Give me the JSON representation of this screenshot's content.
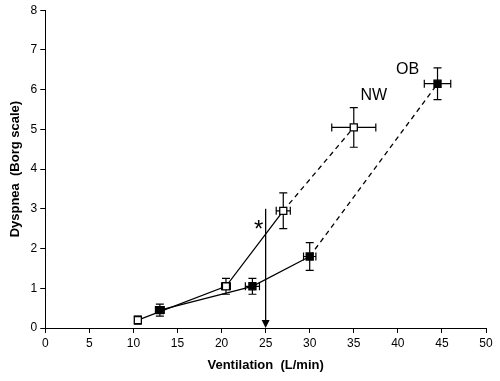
{
  "chart_data": {
    "type": "line",
    "x_label": "Ventilation  (L/min)",
    "y_label": "Dyspnea  (Borg scale)",
    "xlim": [
      0,
      50
    ],
    "xticks": [
      0,
      5,
      10,
      15,
      20,
      25,
      30,
      35,
      40,
      45,
      50
    ],
    "ylim": [
      0,
      8
    ],
    "yticks": [
      0,
      1,
      2,
      3,
      4,
      5,
      6,
      7,
      8
    ],
    "grid": false,
    "series": [
      {
        "name": "NW",
        "color": "#000000",
        "marker": "square_open",
        "line_style": "dashed_last",
        "x": [
          10.5,
          20.5,
          27,
          35
        ],
        "values": [
          0.2,
          1.05,
          2.95,
          5.05
        ],
        "x_err": [
          0.3,
          0.5,
          0.8,
          2.5
        ],
        "y_err": [
          0.1,
          0.2,
          0.45,
          0.5
        ]
      },
      {
        "name": "OB",
        "color": "#000000",
        "marker": "square",
        "line_style": "dashed_last",
        "x": [
          13,
          23.5,
          30,
          44.5
        ],
        "values": [
          0.45,
          1.05,
          1.8,
          6.15
        ],
        "x_err": [
          0.5,
          0.8,
          0.7,
          1.5
        ],
        "y_err": [
          0.15,
          0.2,
          0.35,
          0.4
        ]
      }
    ],
    "annotations": [
      {
        "text": "*",
        "x": 24.2,
        "y": 2.6
      }
    ],
    "arrow": {
      "x": 25,
      "y_from": 3.0,
      "y_to": 0
    }
  }
}
